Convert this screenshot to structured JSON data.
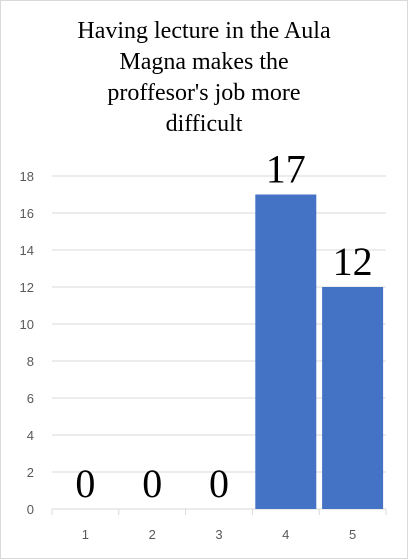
{
  "chart_data": {
    "type": "bar",
    "title": "Having  lecture  in the Aula Magna makes the proffesor's  job more difficult",
    "title_lines": [
      "Having  lecture  in the Aula",
      "Magna makes the",
      "proffesor's  job more",
      "difficult"
    ],
    "categories": [
      "1",
      "2",
      "3",
      "4",
      "5"
    ],
    "values": [
      0,
      0,
      0,
      17,
      12
    ],
    "y_ticks": [
      "0",
      "2",
      "4",
      "6",
      "8",
      "10",
      "12",
      "14",
      "16",
      "18"
    ],
    "ylim": [
      0,
      18
    ],
    "xlabel": "",
    "ylabel": "",
    "grid": true,
    "legend": "none",
    "bar_color": "#4472c4",
    "grid_color": "#d9d9d9"
  }
}
